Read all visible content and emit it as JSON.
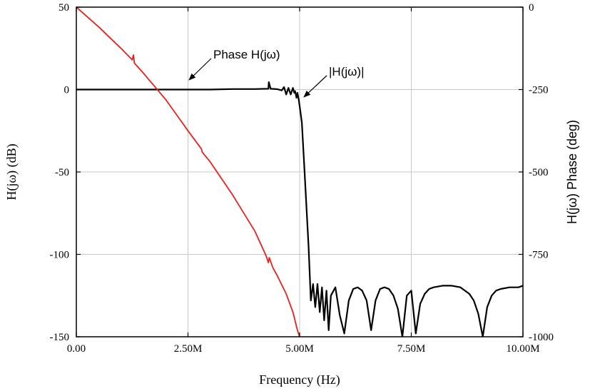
{
  "chart_data": {
    "type": "line",
    "xlabel": "Frequency (Hz)",
    "ylabel_left": "H(jω) (dB)",
    "ylabel_right": "H(jω) Phase (deg)",
    "xlim": [
      0,
      10000000
    ],
    "ylim_left": [
      -150,
      50
    ],
    "ylim_right": [
      -1000,
      0
    ],
    "x_ticks": [
      {
        "value": 0,
        "label": "0.00"
      },
      {
        "value": 2500000,
        "label": "2.50M"
      },
      {
        "value": 5000000,
        "label": "5.00M"
      },
      {
        "value": 7500000,
        "label": "7.50M"
      },
      {
        "value": 10000000,
        "label": "10.00M"
      }
    ],
    "y_left_ticks": [
      {
        "value": 50,
        "label": "50"
      },
      {
        "value": 0,
        "label": "0"
      },
      {
        "value": -50,
        "label": "-50"
      },
      {
        "value": -100,
        "label": "-100"
      },
      {
        "value": -150,
        "label": "-150"
      }
    ],
    "y_right_ticks": [
      {
        "value": 0,
        "label": "0"
      },
      {
        "value": -250,
        "label": "-250"
      },
      {
        "value": -500,
        "label": "-500"
      },
      {
        "value": -750,
        "label": "-750"
      },
      {
        "value": -1000,
        "label": "-1000"
      }
    ],
    "grid": true,
    "series": [
      {
        "name": "|H(jω)|",
        "axis": "left",
        "color": "#000000",
        "x": [
          0,
          500000,
          1000000,
          1500000,
          2000000,
          2500000,
          3000000,
          3500000,
          4000000,
          4300000,
          4310000,
          4350000,
          4500000,
          4600000,
          4650000,
          4700000,
          4750000,
          4800000,
          4850000,
          4880000,
          4900000,
          4930000,
          4950000,
          4980000,
          5000000,
          5050000,
          5100000,
          5150000,
          5200000,
          5250000,
          5300000,
          5350000,
          5400000,
          5450000,
          5500000,
          5550000,
          5600000,
          5650000,
          5700000,
          5800000,
          5900000,
          6000000,
          6100000,
          6200000,
          6300000,
          6400000,
          6500000,
          6600000,
          6700000,
          6800000,
          6900000,
          7000000,
          7100000,
          7200000,
          7300000,
          7400000,
          7500000,
          7600000,
          7700000,
          7800000,
          7900000,
          8000000,
          8200000,
          8400000,
          8600000,
          8800000,
          8900000,
          9000000,
          9100000,
          9200000,
          9300000,
          9400000,
          9500000,
          9700000,
          9900000,
          10000000
        ],
        "y": [
          0,
          0,
          0,
          0,
          0,
          0,
          0,
          0.3,
          0.3,
          0.5,
          4.5,
          0.5,
          0.2,
          -0.5,
          1.5,
          -3,
          1,
          -3,
          1,
          -2,
          -1,
          -5,
          -2,
          -6,
          -10,
          -20,
          -45,
          -70,
          -95,
          -128,
          -118,
          -132,
          -118,
          -135,
          -120,
          -140,
          -122,
          -146,
          -125,
          -120,
          -137,
          -148,
          -128,
          -121,
          -120,
          -122,
          -128,
          -146,
          -128,
          -121,
          -120,
          -121,
          -125,
          -133,
          -150,
          -125,
          -122,
          -148,
          -130,
          -124,
          -121,
          -120,
          -119,
          -119,
          -120,
          -124,
          -128,
          -136,
          -150,
          -132,
          -125,
          -122,
          -121,
          -120,
          -120,
          -119
        ]
      },
      {
        "name": "Phase H(jω)",
        "axis": "right",
        "color": "#e8201c",
        "x": [
          0,
          500000,
          1000000,
          1250000,
          1280000,
          1300000,
          1500000,
          2000000,
          2500000,
          2800000,
          2820000,
          3000000,
          3500000,
          4000000,
          4250000,
          4300000,
          4320000,
          4400000,
          4500000,
          4700000,
          4850000,
          4950000,
          5000000
        ],
        "y": [
          0,
          -60,
          -125,
          -160,
          -145,
          -170,
          -200,
          -280,
          -375,
          -430,
          -440,
          -470,
          -570,
          -680,
          -755,
          -775,
          -760,
          -790,
          -815,
          -870,
          -925,
          -980,
          -1000
        ]
      }
    ],
    "annotations": [
      {
        "text": "Phase H(jω)",
        "target": "Phase H(jω)"
      },
      {
        "text": "|H(jω)|",
        "target": "|H(jω)|"
      }
    ]
  }
}
